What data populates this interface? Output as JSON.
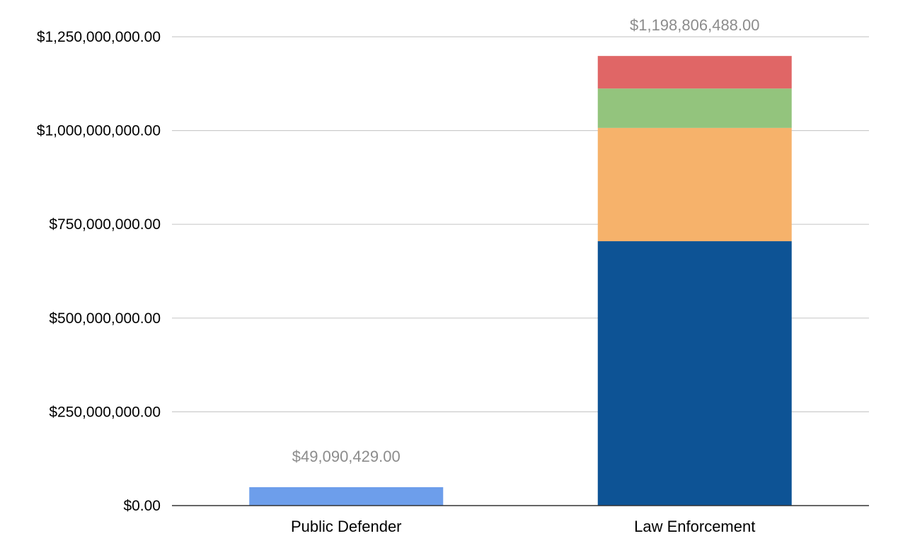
{
  "chart_data": {
    "type": "bar",
    "stacked": true,
    "title": "",
    "xlabel": "",
    "ylabel": "",
    "ylim": [
      0,
      1250000000
    ],
    "y_ticks": [
      0,
      250000000,
      500000000,
      750000000,
      1000000000,
      1250000000
    ],
    "y_tick_labels": [
      "$0.00",
      "$250,000,000.00",
      "$500,000,000.00",
      "$750,000,000.00",
      "$1,000,000,000.00",
      "$1,250,000,000.00"
    ],
    "grid": true,
    "legend": "none",
    "categories": [
      "Public Defender",
      "Law Enforcement"
    ],
    "series": [
      {
        "color": "#6d9eeb",
        "values": [
          49090429,
          0
        ]
      },
      {
        "color": "#0d5395",
        "values": [
          0,
          705000000
        ]
      },
      {
        "color": "#f6b26b",
        "values": [
          0,
          302000000
        ]
      },
      {
        "color": "#93c47d",
        "values": [
          0,
          105000000
        ]
      },
      {
        "color": "#e06666",
        "values": [
          0,
          86806488
        ]
      }
    ],
    "totals": [
      49090429,
      1198806488
    ],
    "total_labels": [
      "$49,090,429.00",
      "$1,198,806,488.00"
    ]
  }
}
